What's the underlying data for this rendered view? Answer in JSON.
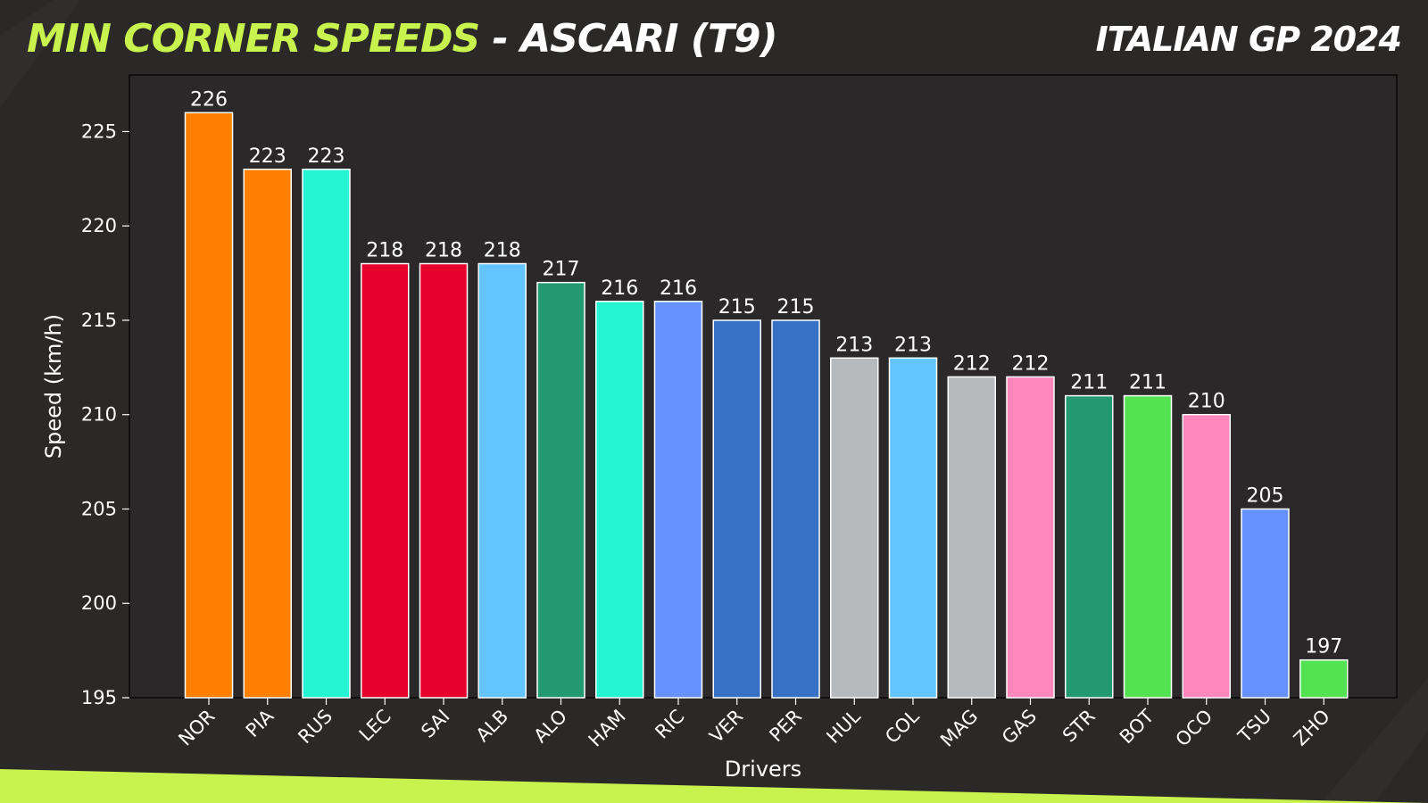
{
  "header": {
    "title_accent": "MIN CORNER SPEEDS",
    "title_rest": " - ASCARI (T9)",
    "event": "ITALIAN GP 2024"
  },
  "colors": {
    "background": "#2b2928",
    "plot_background": "#2a2828",
    "accent": "#c8f24d"
  },
  "chart_data": {
    "type": "bar",
    "xlabel": "Drivers",
    "ylabel": "Speed (km/h)",
    "ylim": [
      195,
      228
    ],
    "yticks": [
      195,
      200,
      205,
      210,
      215,
      220,
      225
    ],
    "grid": false,
    "categories": [
      "NOR",
      "PIA",
      "RUS",
      "LEC",
      "SAI",
      "ALB",
      "ALO",
      "HAM",
      "RIC",
      "VER",
      "PER",
      "HUL",
      "COL",
      "MAG",
      "GAS",
      "STR",
      "BOT",
      "OCO",
      "TSU",
      "ZHO"
    ],
    "values": [
      226,
      223,
      223,
      218,
      218,
      218,
      217,
      216,
      216,
      215,
      215,
      213,
      213,
      212,
      212,
      211,
      211,
      210,
      205,
      197
    ],
    "bar_colors": [
      "#ff8000",
      "#ff8000",
      "#27f4d2",
      "#e8002d",
      "#e8002d",
      "#64c4ff",
      "#229971",
      "#27f4d2",
      "#6692ff",
      "#3671c6",
      "#3671c6",
      "#b6babd",
      "#64c4ff",
      "#b6babd",
      "#ff87bc",
      "#229971",
      "#52e252",
      "#ff87bc",
      "#6692ff",
      "#52e252"
    ]
  }
}
